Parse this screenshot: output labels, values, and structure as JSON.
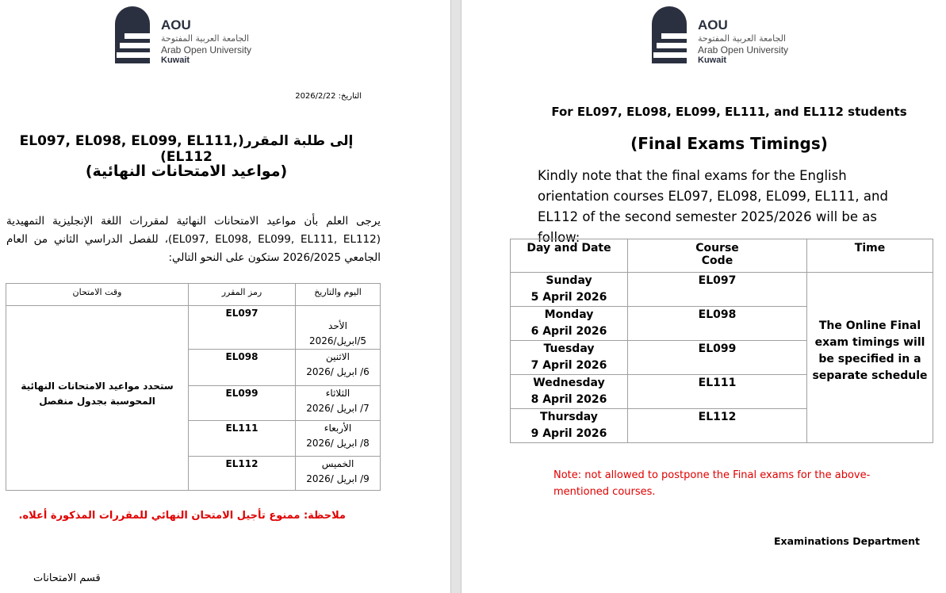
{
  "logo": {
    "abbr": "AOU",
    "arabic": "الجامعة العربية المفتوحة",
    "english": "Arab Open University",
    "campus": "Kuwait"
  },
  "left": {
    "date_label": "التاريخ:",
    "date": "2026/2/22",
    "title": "إلى طلبة المقرر(EL097, EL098, EL099, EL111, EL112)",
    "subtitle": "(مواعيد الامتحانات النهائية)",
    "paragraph": "يرجى العلم بأن مواعيد الامتحانات النهائية لمقررات اللغة الإنجليزية التمهيدية (EL097, EL098, EL099, EL111, EL112)، للفصل الدراسي الثاني من العام الجامعي 2026/2025 ستكون على النحو التالي:",
    "table": {
      "headers": [
        "اليوم والتاريخ",
        "رمز المقرر",
        "وقت الامتحان"
      ],
      "rows": [
        {
          "day": "الأحد",
          "date": "5/ابريل/2026",
          "code": "EL097"
        },
        {
          "day": "الاثنين",
          "date": "6/ ابريل /2026",
          "code": "EL098"
        },
        {
          "day": "الثلاثاء",
          "date": "7/ ابريل /2026",
          "code": "EL099"
        },
        {
          "day": "الأربعاء",
          "date": "8/ ابريل /2026",
          "code": "EL111"
        },
        {
          "day": "الخميس",
          "date": "9/ ابريل /2026",
          "code": "EL112"
        }
      ],
      "time": "ستحدد مواعيد الامتحانات النهائية المحوسبة بجدول منفصل"
    },
    "note": "ملاحظة: ممنوع تأجيل الامتحان النهائي للمقررات المذكورة أعلاه.",
    "department": "قسم الامتحانات"
  },
  "right": {
    "heading": "For EL097, EL098, EL099, EL111, and EL112 students",
    "title": "(Final Exams Timings)",
    "paragraph": "Kindly note that the final exams for the English orientation courses EL097, EL098, EL099, EL111, and EL112 of the second semester 2025/2026 will be as follow:",
    "table": {
      "headers": [
        "Day and Date",
        "Course Code",
        "Time"
      ],
      "rows": [
        {
          "day": "Sunday",
          "date": "5 April 2026",
          "code": "EL097"
        },
        {
          "day": "Monday",
          "date": "6 April 2026",
          "code": "EL098"
        },
        {
          "day": "Tuesday",
          "date": "7 April 2026",
          "code": "EL099"
        },
        {
          "day": "Wednesday",
          "date": "8 April 2026",
          "code": "EL111"
        },
        {
          "day": "Thursday",
          "date": "9 April 2026",
          "code": "EL112"
        }
      ],
      "time": "The Online Final exam timings will be specified in a separate schedule"
    },
    "note": "Note: not allowed to postpone the Final exams for the above-mentioned courses.",
    "department": "Examinations Department"
  },
  "colors": {
    "note_red": "#e00000",
    "logo_navy": "#2b3040"
  }
}
